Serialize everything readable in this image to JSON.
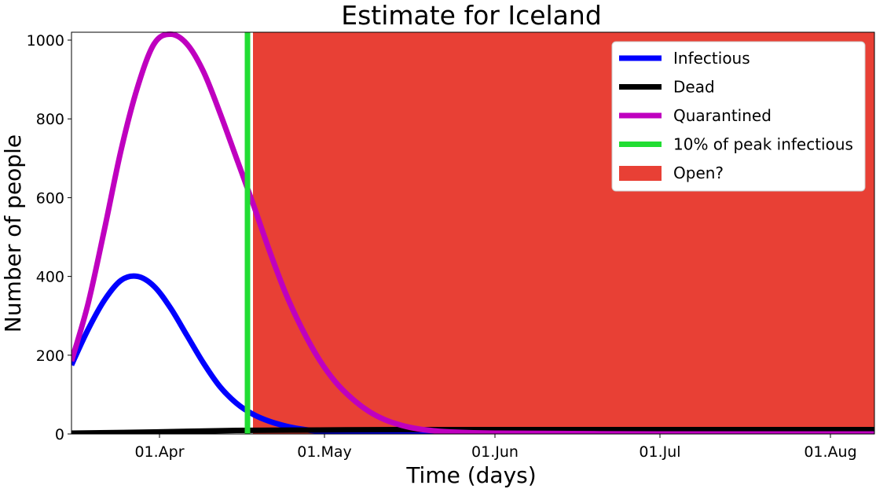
{
  "chart_data": {
    "type": "line",
    "title": "Estimate for Iceland",
    "xlabel": "Time (days)",
    "ylabel": "Number of people",
    "ylim": [
      0,
      1020
    ],
    "xlim": [
      "2020-03-16",
      "2020-08-09"
    ],
    "grid": false,
    "legend_position": "top-right",
    "x_ticks": [
      {
        "date": "2020-04-01",
        "label": "01.Apr"
      },
      {
        "date": "2020-05-01",
        "label": "01.May"
      },
      {
        "date": "2020-06-01",
        "label": "01.Jun"
      },
      {
        "date": "2020-07-01",
        "label": "01.Jul"
      },
      {
        "date": "2020-08-01",
        "label": "01.Aug"
      }
    ],
    "y_ticks": [
      0,
      200,
      400,
      600,
      800,
      1000
    ],
    "series": [
      {
        "name": "Infectious",
        "color": "#0000ff",
        "x": [
          "2020-03-16",
          "2020-03-19",
          "2020-03-22",
          "2020-03-25",
          "2020-03-28",
          "2020-03-31",
          "2020-04-03",
          "2020-04-06",
          "2020-04-09",
          "2020-04-12",
          "2020-04-15",
          "2020-04-18",
          "2020-04-21",
          "2020-04-24",
          "2020-04-27",
          "2020-04-30",
          "2020-05-06",
          "2020-05-13",
          "2020-05-20",
          "2020-05-27",
          "2020-06-10",
          "2020-07-01",
          "2020-07-20",
          "2020-08-09"
        ],
        "y": [
          175,
          265,
          340,
          390,
          400,
          375,
          320,
          250,
          180,
          120,
          78,
          50,
          32,
          20,
          12,
          7,
          3,
          1,
          0,
          0,
          0,
          0,
          0,
          0
        ]
      },
      {
        "name": "Dead",
        "color": "#000000",
        "x": [
          "2020-03-16",
          "2020-03-31",
          "2020-04-15",
          "2020-04-30",
          "2020-05-15",
          "2020-06-01",
          "2020-07-01",
          "2020-08-09"
        ],
        "y": [
          2,
          5,
          9,
          10,
          11,
          11,
          11,
          11
        ]
      },
      {
        "name": "Quarantined",
        "color": "#bf00bf",
        "x": [
          "2020-03-16",
          "2020-03-19",
          "2020-03-22",
          "2020-03-25",
          "2020-03-28",
          "2020-03-31",
          "2020-04-03",
          "2020-04-06",
          "2020-04-09",
          "2020-04-12",
          "2020-04-15",
          "2020-04-18",
          "2020-04-21",
          "2020-04-24",
          "2020-04-27",
          "2020-04-30",
          "2020-05-03",
          "2020-05-06",
          "2020-05-09",
          "2020-05-12",
          "2020-05-15",
          "2020-05-18",
          "2020-05-21",
          "2020-05-24",
          "2020-06-01",
          "2020-06-15",
          "2020-07-01",
          "2020-08-09"
        ],
        "y": [
          185,
          330,
          520,
          720,
          880,
          990,
          1015,
          990,
          920,
          815,
          700,
          585,
          465,
          355,
          265,
          190,
          132,
          90,
          58,
          36,
          22,
          13,
          8,
          5,
          2,
          1,
          0,
          0
        ]
      }
    ],
    "markers": [
      {
        "name": "10% of peak infectious",
        "color": "#22dd33",
        "type": "vertical_line",
        "x": "2020-04-17"
      }
    ],
    "regions": [
      {
        "name": "Open?",
        "color": "#e84035",
        "type": "shaded_region",
        "x_start": "2020-04-18",
        "x_end": "2020-08-09"
      }
    ],
    "legend": [
      "Infectious",
      "Dead",
      "Quarantined",
      "10% of peak infectious",
      "Open?"
    ]
  }
}
